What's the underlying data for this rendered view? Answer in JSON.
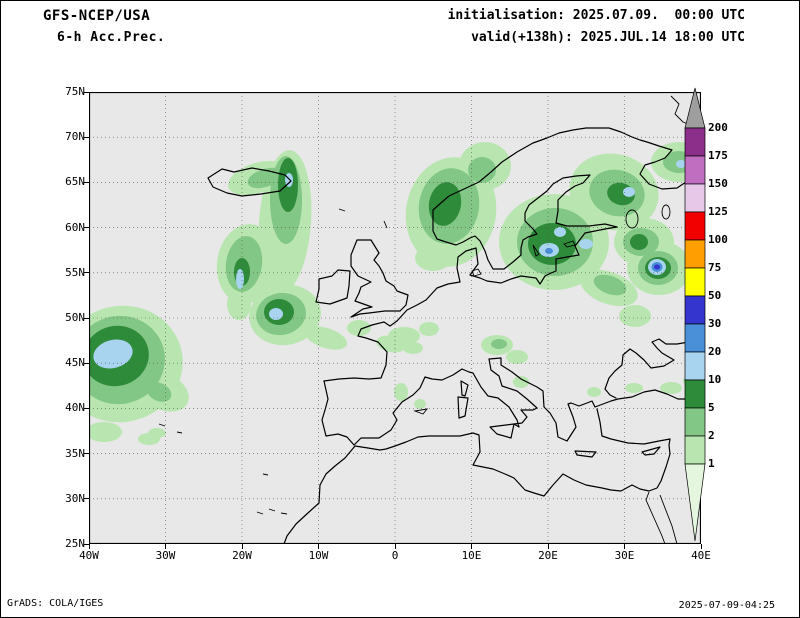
{
  "header": {
    "model": "GFS-NCEP/USA",
    "product": "6-h Acc.Prec.",
    "init": "initialisation: 2025.07.09.  00:00 UTC",
    "valid": "valid(+138h): 2025.JUL.14 18:00 UTC"
  },
  "axes": {
    "lat_labels": [
      "75N",
      "70N",
      "65N",
      "60N",
      "55N",
      "50N",
      "45N",
      "40N",
      "35N",
      "30N",
      "25N"
    ],
    "lon_labels": [
      "40W",
      "30W",
      "20W",
      "10W",
      "0",
      "10E",
      "20E",
      "30E",
      "40E"
    ]
  },
  "map": {
    "background": "#e8e8e8"
  },
  "colorbar": {
    "tick_labels": [
      "200",
      "175",
      "150",
      "125",
      "100",
      "75",
      "50",
      "30",
      "20",
      "10",
      "5",
      "2",
      "1"
    ],
    "over_color": "#9e9e9e",
    "segment_colors": [
      "#8b2f8b",
      "#c06ec0",
      "#e8c8e8",
      "#f20000",
      "#ff9e00",
      "#ffff00",
      "#3434cf",
      "#4a90d9",
      "#a8d4f0",
      "#2e8b3a",
      "#82c785",
      "#b9e6b0"
    ],
    "under_color": "#e4f6de"
  },
  "footer": {
    "left": "GrADS: COLA/IGES",
    "right": "2025-07-09-04:25"
  }
}
